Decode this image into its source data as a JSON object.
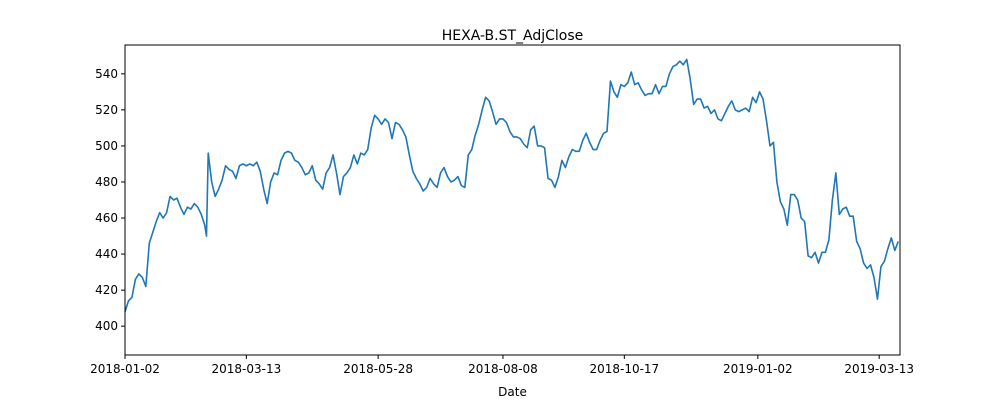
{
  "chart_data": {
    "type": "line",
    "title": "HEXA-B.ST_AdjClose",
    "xlabel": "Date",
    "ylabel": "",
    "ylim": [
      384,
      556
    ],
    "x_range": [
      "2018-01-02",
      "2019-03-25"
    ],
    "yticks": [
      400,
      420,
      440,
      460,
      480,
      500,
      520,
      540
    ],
    "xticks": [
      {
        "date": "2018-01-02",
        "label": "2018-01-02"
      },
      {
        "date": "2018-03-13",
        "label": "2018-03-13"
      },
      {
        "date": "2018-05-28",
        "label": "2018-05-28"
      },
      {
        "date": "2018-08-08",
        "label": "2018-08-08"
      },
      {
        "date": "2018-10-17",
        "label": "2018-10-17"
      },
      {
        "date": "2019-01-02",
        "label": "2019-01-02"
      },
      {
        "date": "2019-03-13",
        "label": "2019-03-13"
      }
    ],
    "grid": false,
    "line_color": "#1f77b4",
    "series": [
      {
        "name": "",
        "points": [
          [
            "2018-01-02",
            408
          ],
          [
            "2018-01-04",
            414
          ],
          [
            "2018-01-06",
            416
          ],
          [
            "2018-01-08",
            426
          ],
          [
            "2018-01-10",
            429
          ],
          [
            "2018-01-12",
            427
          ],
          [
            "2018-01-14",
            422
          ],
          [
            "2018-01-16",
            446
          ],
          [
            "2018-01-18",
            452
          ],
          [
            "2018-01-20",
            458
          ],
          [
            "2018-01-22",
            463
          ],
          [
            "2018-01-24",
            460
          ],
          [
            "2018-01-26",
            463
          ],
          [
            "2018-01-28",
            472
          ],
          [
            "2018-01-30",
            470
          ],
          [
            "2018-02-01",
            471
          ],
          [
            "2018-02-03",
            466
          ],
          [
            "2018-02-05",
            462
          ],
          [
            "2018-02-07",
            466
          ],
          [
            "2018-02-09",
            465
          ],
          [
            "2018-02-11",
            468
          ],
          [
            "2018-02-13",
            466
          ],
          [
            "2018-02-15",
            462
          ],
          [
            "2018-02-17",
            456
          ],
          [
            "2018-02-18",
            450
          ],
          [
            "2018-02-19",
            496
          ],
          [
            "2018-02-21",
            480
          ],
          [
            "2018-02-23",
            472
          ],
          [
            "2018-02-25",
            476
          ],
          [
            "2018-02-27",
            481
          ],
          [
            "2018-03-01",
            489
          ],
          [
            "2018-03-03",
            487
          ],
          [
            "2018-03-05",
            486
          ],
          [
            "2018-03-07",
            482
          ],
          [
            "2018-03-09",
            489
          ],
          [
            "2018-03-11",
            490
          ],
          [
            "2018-03-13",
            489
          ],
          [
            "2018-03-15",
            490
          ],
          [
            "2018-03-17",
            489
          ],
          [
            "2018-03-19",
            491
          ],
          [
            "2018-03-21",
            486
          ],
          [
            "2018-03-23",
            476
          ],
          [
            "2018-03-25",
            468
          ],
          [
            "2018-03-27",
            480
          ],
          [
            "2018-03-29",
            485
          ],
          [
            "2018-03-31",
            484
          ],
          [
            "2018-04-02",
            492
          ],
          [
            "2018-04-04",
            496
          ],
          [
            "2018-04-06",
            497
          ],
          [
            "2018-04-08",
            496
          ],
          [
            "2018-04-10",
            492
          ],
          [
            "2018-04-12",
            491
          ],
          [
            "2018-04-14",
            488
          ],
          [
            "2018-04-16",
            484
          ],
          [
            "2018-04-18",
            485
          ],
          [
            "2018-04-20",
            489
          ],
          [
            "2018-04-22",
            481
          ],
          [
            "2018-04-24",
            479
          ],
          [
            "2018-04-26",
            476
          ],
          [
            "2018-04-28",
            485
          ],
          [
            "2018-04-30",
            488
          ],
          [
            "2018-05-02",
            495
          ],
          [
            "2018-05-04",
            485
          ],
          [
            "2018-05-06",
            473
          ],
          [
            "2018-05-08",
            483
          ],
          [
            "2018-05-10",
            485
          ],
          [
            "2018-05-12",
            488
          ],
          [
            "2018-05-14",
            495
          ],
          [
            "2018-05-16",
            490
          ],
          [
            "2018-05-18",
            496
          ],
          [
            "2018-05-20",
            495
          ],
          [
            "2018-05-22",
            498
          ],
          [
            "2018-05-24",
            510
          ],
          [
            "2018-05-26",
            517
          ],
          [
            "2018-05-28",
            515
          ],
          [
            "2018-05-30",
            512
          ],
          [
            "2018-06-01",
            515
          ],
          [
            "2018-06-03",
            513
          ],
          [
            "2018-06-05",
            504
          ],
          [
            "2018-06-07",
            513
          ],
          [
            "2018-06-09",
            512
          ],
          [
            "2018-06-11",
            509
          ],
          [
            "2018-06-13",
            505
          ],
          [
            "2018-06-15",
            495
          ],
          [
            "2018-06-17",
            486
          ],
          [
            "2018-06-19",
            482
          ],
          [
            "2018-06-21",
            479
          ],
          [
            "2018-06-23",
            475
          ],
          [
            "2018-06-25",
            477
          ],
          [
            "2018-06-27",
            482
          ],
          [
            "2018-06-29",
            479
          ],
          [
            "2018-07-01",
            477
          ],
          [
            "2018-07-03",
            485
          ],
          [
            "2018-07-05",
            488
          ],
          [
            "2018-07-07",
            483
          ],
          [
            "2018-07-09",
            480
          ],
          [
            "2018-07-11",
            481
          ],
          [
            "2018-07-13",
            483
          ],
          [
            "2018-07-15",
            478
          ],
          [
            "2018-07-17",
            477
          ],
          [
            "2018-07-19",
            495
          ],
          [
            "2018-07-21",
            498
          ],
          [
            "2018-07-23",
            506
          ],
          [
            "2018-07-25",
            512
          ],
          [
            "2018-07-27",
            520
          ],
          [
            "2018-07-29",
            527
          ],
          [
            "2018-07-31",
            525
          ],
          [
            "2018-08-02",
            519
          ],
          [
            "2018-08-04",
            512
          ],
          [
            "2018-08-06",
            515
          ],
          [
            "2018-08-08",
            515
          ],
          [
            "2018-08-10",
            513
          ],
          [
            "2018-08-12",
            508
          ],
          [
            "2018-08-14",
            505
          ],
          [
            "2018-08-16",
            505
          ],
          [
            "2018-08-18",
            504
          ],
          [
            "2018-08-20",
            501
          ],
          [
            "2018-08-22",
            499
          ],
          [
            "2018-08-24",
            509
          ],
          [
            "2018-08-26",
            511
          ],
          [
            "2018-08-28",
            500
          ],
          [
            "2018-08-30",
            500
          ],
          [
            "2018-09-01",
            499
          ],
          [
            "2018-09-03",
            482
          ],
          [
            "2018-09-05",
            481
          ],
          [
            "2018-09-07",
            477
          ],
          [
            "2018-09-09",
            483
          ],
          [
            "2018-09-11",
            492
          ],
          [
            "2018-09-13",
            488
          ],
          [
            "2018-09-15",
            494
          ],
          [
            "2018-09-17",
            498
          ],
          [
            "2018-09-19",
            497
          ],
          [
            "2018-09-21",
            497
          ],
          [
            "2018-09-23",
            503
          ],
          [
            "2018-09-25",
            507
          ],
          [
            "2018-09-27",
            502
          ],
          [
            "2018-09-29",
            498
          ],
          [
            "2018-10-01",
            498
          ],
          [
            "2018-10-03",
            503
          ],
          [
            "2018-10-05",
            507
          ],
          [
            "2018-10-07",
            508
          ],
          [
            "2018-10-09",
            536
          ],
          [
            "2018-10-11",
            530
          ],
          [
            "2018-10-13",
            527
          ],
          [
            "2018-10-15",
            534
          ],
          [
            "2018-10-17",
            533
          ],
          [
            "2018-10-19",
            535
          ],
          [
            "2018-10-21",
            541
          ],
          [
            "2018-10-23",
            534
          ],
          [
            "2018-10-25",
            535
          ],
          [
            "2018-10-27",
            531
          ],
          [
            "2018-10-29",
            528
          ],
          [
            "2018-10-31",
            529
          ],
          [
            "2018-11-02",
            529
          ],
          [
            "2018-11-04",
            534
          ],
          [
            "2018-11-06",
            529
          ],
          [
            "2018-11-08",
            533
          ],
          [
            "2018-11-10",
            533
          ],
          [
            "2018-11-12",
            540
          ],
          [
            "2018-11-14",
            544
          ],
          [
            "2018-11-16",
            545
          ],
          [
            "2018-11-18",
            547
          ],
          [
            "2018-11-20",
            545
          ],
          [
            "2018-11-22",
            548
          ],
          [
            "2018-11-24",
            537
          ],
          [
            "2018-11-26",
            523
          ],
          [
            "2018-11-28",
            526
          ],
          [
            "2018-11-30",
            526
          ],
          [
            "2018-12-02",
            521
          ],
          [
            "2018-12-04",
            522
          ],
          [
            "2018-12-06",
            518
          ],
          [
            "2018-12-08",
            520
          ],
          [
            "2018-12-10",
            515
          ],
          [
            "2018-12-12",
            514
          ],
          [
            "2018-12-14",
            518
          ],
          [
            "2018-12-16",
            522
          ],
          [
            "2018-12-18",
            525
          ],
          [
            "2018-12-20",
            520
          ],
          [
            "2018-12-22",
            519
          ],
          [
            "2018-12-24",
            520
          ],
          [
            "2018-12-26",
            521
          ],
          [
            "2018-12-28",
            519
          ],
          [
            "2018-12-30",
            527
          ],
          [
            "2019-01-01",
            524
          ],
          [
            "2019-01-03",
            530
          ],
          [
            "2019-01-05",
            526
          ],
          [
            "2019-01-07",
            514
          ],
          [
            "2019-01-09",
            500
          ],
          [
            "2019-01-11",
            502
          ],
          [
            "2019-01-13",
            480
          ],
          [
            "2019-01-15",
            469
          ],
          [
            "2019-01-17",
            465
          ],
          [
            "2019-01-19",
            456
          ],
          [
            "2019-01-21",
            473
          ],
          [
            "2019-01-23",
            473
          ],
          [
            "2019-01-25",
            470
          ],
          [
            "2019-01-27",
            460
          ],
          [
            "2019-01-29",
            458
          ],
          [
            "2019-01-31",
            439
          ],
          [
            "2019-02-02",
            438
          ],
          [
            "2019-02-04",
            441
          ],
          [
            "2019-02-06",
            435
          ],
          [
            "2019-02-08",
            441
          ],
          [
            "2019-02-10",
            441
          ],
          [
            "2019-02-12",
            448
          ],
          [
            "2019-02-14",
            470
          ],
          [
            "2019-02-16",
            485
          ],
          [
            "2019-02-18",
            462
          ],
          [
            "2019-02-20",
            465
          ],
          [
            "2019-02-22",
            466
          ],
          [
            "2019-02-24",
            461
          ],
          [
            "2019-02-26",
            461
          ],
          [
            "2019-02-28",
            447
          ],
          [
            "2019-03-02",
            443
          ],
          [
            "2019-03-04",
            435
          ],
          [
            "2019-03-06",
            432
          ],
          [
            "2019-03-08",
            434
          ],
          [
            "2019-03-10",
            427
          ],
          [
            "2019-03-12",
            415
          ],
          [
            "2019-03-14",
            433
          ],
          [
            "2019-03-16",
            436
          ],
          [
            "2019-03-18",
            443
          ],
          [
            "2019-03-20",
            449
          ],
          [
            "2019-03-22",
            442
          ],
          [
            "2019-03-24",
            447
          ]
        ]
      }
    ]
  }
}
